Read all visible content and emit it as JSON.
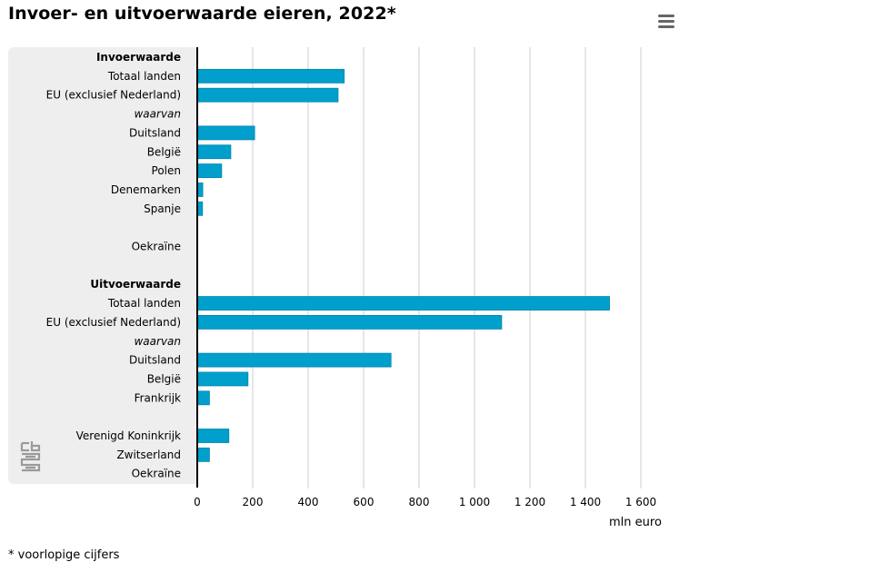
{
  "header": {
    "title": "Invoer- en uitvoerwaarde eieren, 2022*",
    "menu_icon": "hamburger-menu-icon"
  },
  "footnote": "* voorlopige cijfers",
  "logo_icon": "cbs-logo-icon",
  "colors": {
    "bar": "#009fcc",
    "bar_border": "#0086ad",
    "grid": "#cccccc",
    "panel": "#eeeeee"
  },
  "chart_data": {
    "type": "bar",
    "orientation": "horizontal",
    "title": "Invoer- en uitvoerwaarde eieren, 2022*",
    "xlabel": "mln euro",
    "xlim": [
      0,
      1600
    ],
    "xticks": [
      0,
      200,
      400,
      600,
      800,
      1000,
      1200,
      1400,
      1600
    ],
    "xtick_labels": [
      "0",
      "200",
      "400",
      "600",
      "800",
      "1 000",
      "1 200",
      "1 400",
      "1 600"
    ],
    "grid": true,
    "categories": [
      {
        "label": "Invoerwaarde",
        "style": "heading",
        "value": null
      },
      {
        "label": "Totaal landen",
        "style": "normal",
        "value": 530
      },
      {
        "label": "EU (exclusief Nederland)",
        "style": "normal",
        "value": 508
      },
      {
        "label": "waarvan",
        "style": "italic",
        "value": null
      },
      {
        "label": "Duitsland",
        "style": "normal",
        "value": 207
      },
      {
        "label": "België",
        "style": "normal",
        "value": 121
      },
      {
        "label": "Polen",
        "style": "normal",
        "value": 88
      },
      {
        "label": "Denemarken",
        "style": "normal",
        "value": 20
      },
      {
        "label": "Spanje",
        "style": "normal",
        "value": 19
      },
      {
        "label": "",
        "style": "spacer",
        "value": null
      },
      {
        "label": "Oekraïne",
        "style": "normal",
        "value": 0
      },
      {
        "label": "",
        "style": "spacer",
        "value": null
      },
      {
        "label": "Uitvoerwaarde",
        "style": "heading",
        "value": null
      },
      {
        "label": "Totaal landen",
        "style": "normal",
        "value": 1487
      },
      {
        "label": "EU (exclusief Nederland)",
        "style": "normal",
        "value": 1098
      },
      {
        "label": "waarvan",
        "style": "italic",
        "value": null
      },
      {
        "label": "Duitsland",
        "style": "normal",
        "value": 699
      },
      {
        "label": "België",
        "style": "normal",
        "value": 183
      },
      {
        "label": "Frankrijk",
        "style": "normal",
        "value": 44
      },
      {
        "label": "",
        "style": "spacer",
        "value": null
      },
      {
        "label": "Verenigd Koninkrijk",
        "style": "normal",
        "value": 114
      },
      {
        "label": "Zwitserland",
        "style": "normal",
        "value": 44
      },
      {
        "label": "Oekraïne",
        "style": "normal",
        "value": 0
      }
    ]
  }
}
